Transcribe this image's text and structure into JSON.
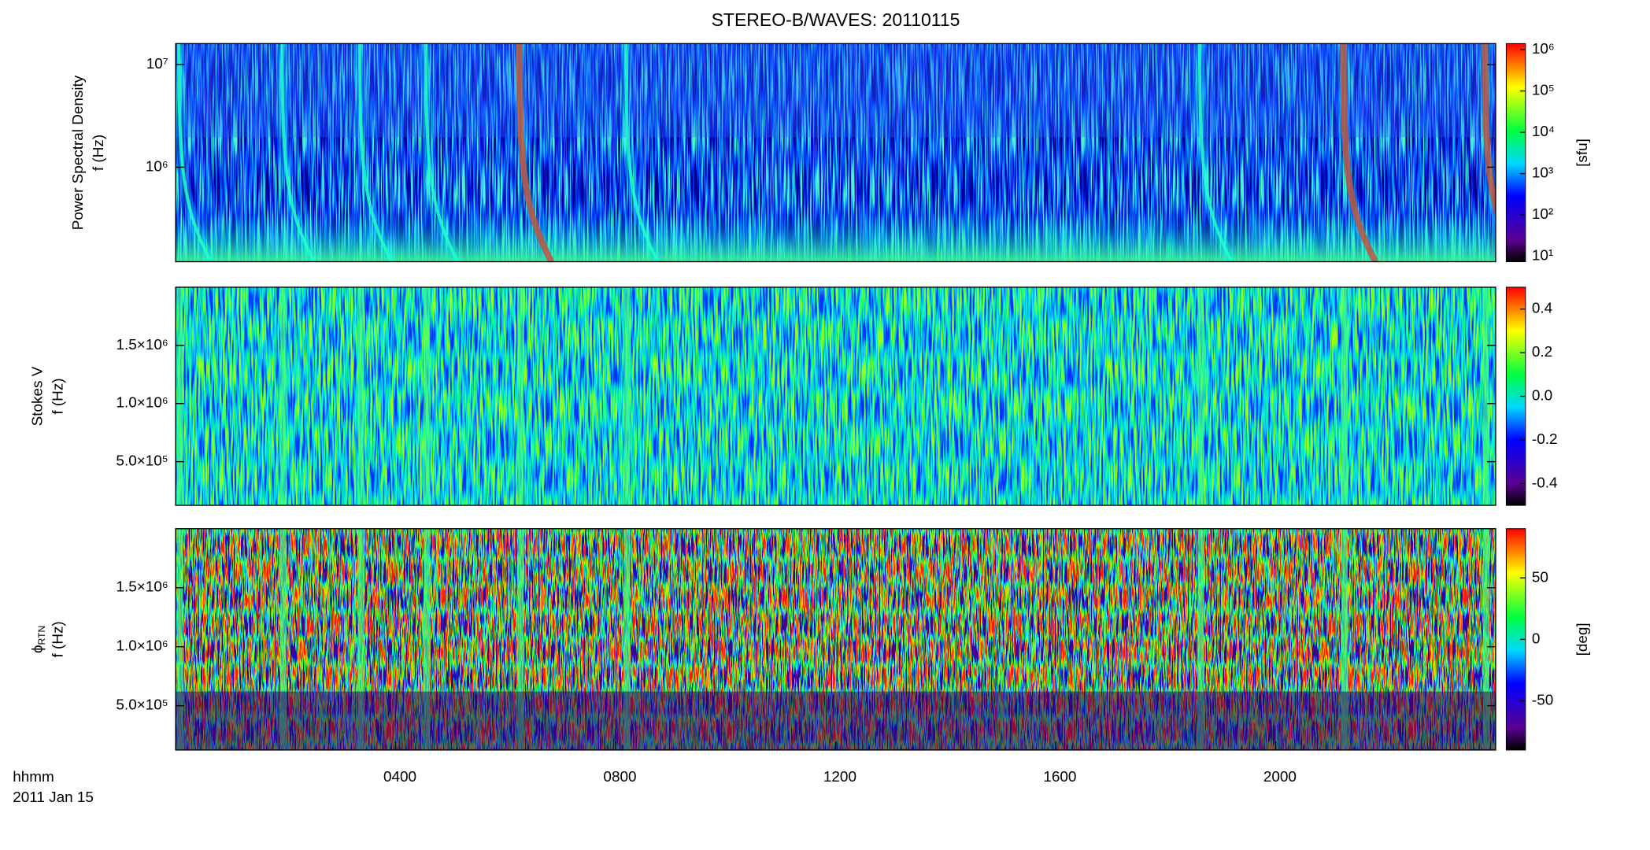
{
  "title": "STEREO-B/WAVES: 20110115",
  "time_label": [
    "hhmm",
    "2011 Jan 15"
  ],
  "chart_data": [
    {
      "type": "heatmap",
      "ylabel": [
        "Power Spectral Density",
        "f (Hz)"
      ],
      "ylog": true,
      "xlim": [
        0,
        24
      ],
      "ylim": [
        120000,
        16000000
      ],
      "yticks": [
        {
          "value": 1000000,
          "label": "10⁶"
        },
        {
          "value": 10000000,
          "label": "10⁷"
        }
      ],
      "colorbar_label": "[sfu]",
      "clog": true,
      "clim": [
        7.4,
        1400000
      ],
      "cticks": [
        {
          "value": 10,
          "label": "10¹"
        },
        {
          "value": 100,
          "label": "10²"
        },
        {
          "value": 1000,
          "label": "10³"
        },
        {
          "value": 10000,
          "label": "10⁴"
        },
        {
          "value": 100000,
          "label": "10⁵"
        },
        {
          "value": 1000000,
          "label": "10⁶"
        }
      ]
    },
    {
      "type": "heatmap",
      "ylabel": [
        "Stokes V",
        "f (Hz)"
      ],
      "ylog": false,
      "xlim": [
        0,
        24
      ],
      "ylim": [
        125000,
        2000000
      ],
      "yticks": [
        {
          "value": 500000,
          "label": "5.0×10⁵"
        },
        {
          "value": 1000000,
          "label": "1.0×10⁶"
        },
        {
          "value": 1500000,
          "label": "1.5×10⁶"
        }
      ],
      "clog": false,
      "clim": [
        -0.5,
        0.5
      ],
      "cticks": [
        -0.4,
        -0.2,
        {
          "value": 0,
          "label": "0.0"
        },
        0.2,
        0.4
      ]
    },
    {
      "type": "heatmap",
      "ylabel": [
        "ϕ",
        "f (Hz)"
      ],
      "ylabel_subscript": "RTN",
      "ylog": false,
      "xlim": [
        0,
        24
      ],
      "ylim": [
        125000,
        2000000
      ],
      "yticks": [
        {
          "value": 500000,
          "label": "5.0×10⁵"
        },
        {
          "value": 1000000,
          "label": "1.0×10⁶"
        },
        {
          "value": 1500000,
          "label": "1.5×10⁶"
        }
      ],
      "xticks": [
        {
          "value": 4,
          "label": "0400"
        },
        {
          "value": 8,
          "label": "0800"
        },
        {
          "value": 12,
          "label": "1200"
        },
        {
          "value": 16,
          "label": "1600"
        },
        {
          "value": 20,
          "label": "2000"
        }
      ],
      "colorbar_label": "[deg]",
      "clog": false,
      "clim": [
        -90,
        90
      ],
      "cticks": [
        -50,
        0,
        50
      ]
    }
  ]
}
